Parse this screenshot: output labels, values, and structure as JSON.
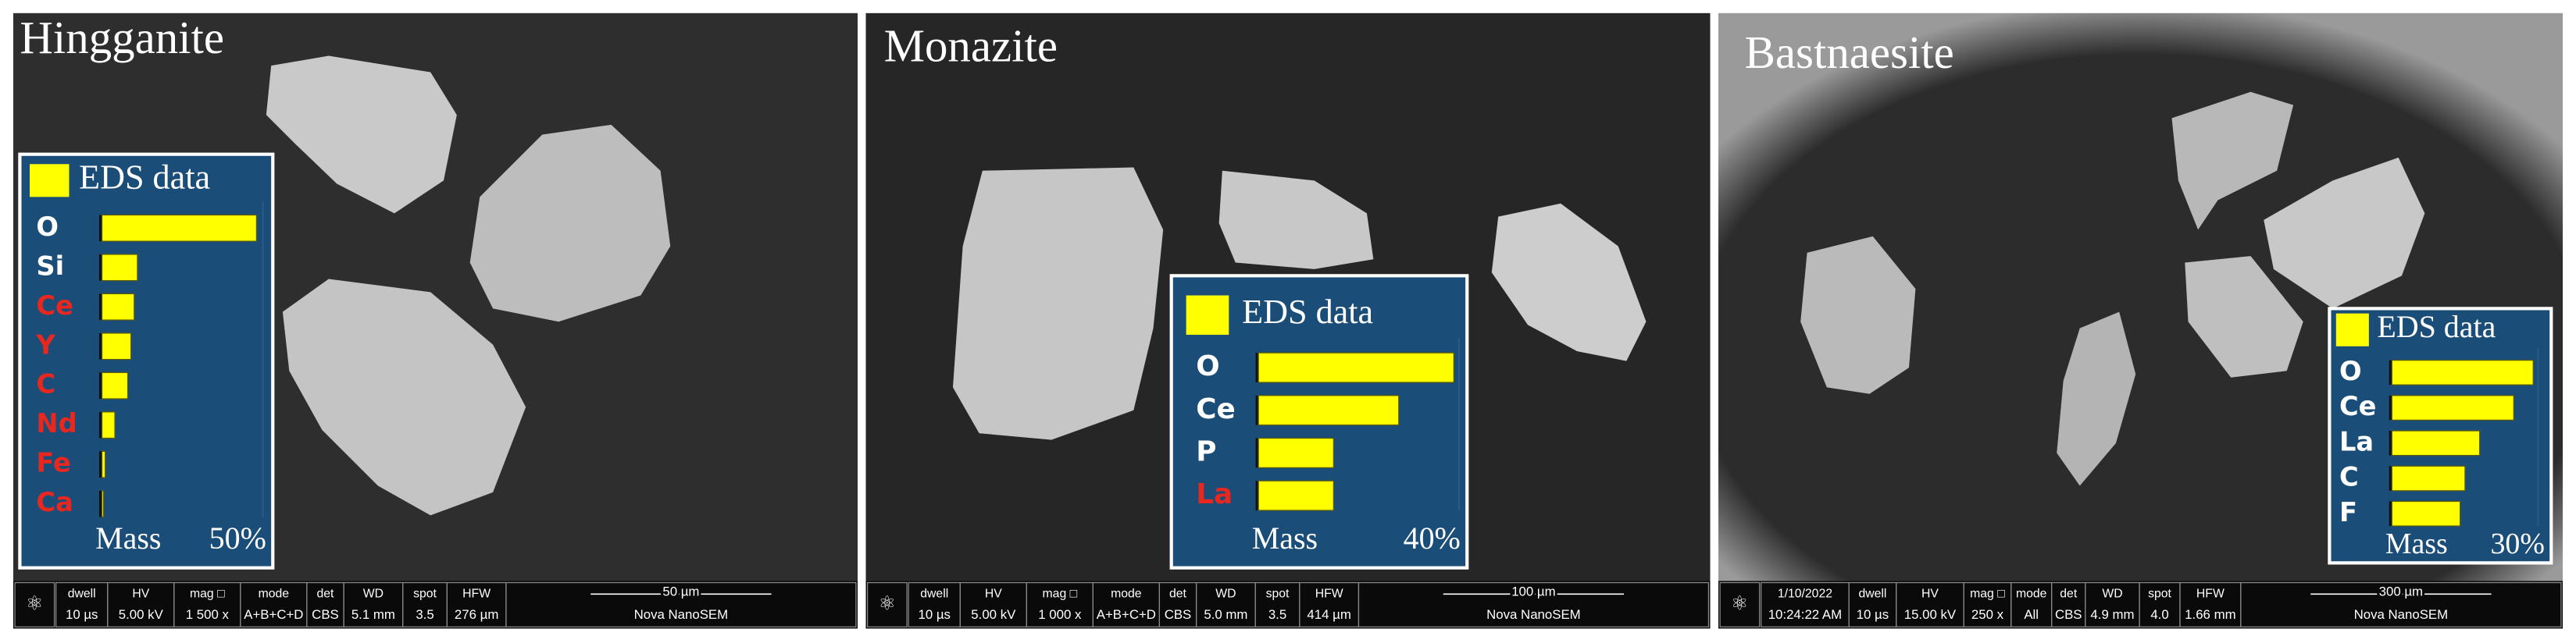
{
  "panels": [
    {
      "title": "Hingganite",
      "eds": {
        "title": "EDS data",
        "axis_label": "Mass",
        "max_tick": {
          "value": 50,
          "label": "50%"
        },
        "elements": [
          {
            "label": "O",
            "color": "#ffffff",
            "value": 48
          },
          {
            "label": "Si",
            "color": "#ffffff",
            "value": 11
          },
          {
            "label": "Ce",
            "color": "#e8281e",
            "value": 10
          },
          {
            "label": "Y",
            "color": "#e8281e",
            "value": 9
          },
          {
            "label": "C",
            "color": "#e8281e",
            "value": 8
          },
          {
            "label": "Nd",
            "color": "#e8281e",
            "value": 4
          },
          {
            "label": "Fe",
            "color": "#e8281e",
            "value": 1
          },
          {
            "label": "Ca",
            "color": "#e8281e",
            "value": 0.5
          }
        ]
      },
      "info_bar": {
        "fields": [
          {
            "name": "dwell",
            "value": "10 µs"
          },
          {
            "name": "HV",
            "value": "5.00 kV"
          },
          {
            "name": "mag □",
            "value": "1 500 x"
          },
          {
            "name": "mode",
            "value": "A+B+C+D"
          },
          {
            "name": "det",
            "value": "CBS"
          },
          {
            "name": "WD",
            "value": "5.1 mm"
          },
          {
            "name": "spot",
            "value": "3.5"
          },
          {
            "name": "HFW",
            "value": "276 µm"
          }
        ],
        "scale_bar": "50 µm",
        "instrument": "Nova NanoSEM"
      }
    },
    {
      "title": "Monazite",
      "eds": {
        "title": "EDS data",
        "axis_label": "Mass",
        "max_tick": {
          "value": 40,
          "label": "40%"
        },
        "elements": [
          {
            "label": "O",
            "color": "#ffffff",
            "value": 39
          },
          {
            "label": "Ce",
            "color": "#ffffff",
            "value": 28
          },
          {
            "label": "P",
            "color": "#ffffff",
            "value": 15
          },
          {
            "label": "La",
            "color": "#e8281e",
            "value": 15
          }
        ]
      },
      "info_bar": {
        "fields": [
          {
            "name": "dwell",
            "value": "10 µs"
          },
          {
            "name": "HV",
            "value": "5.00 kV"
          },
          {
            "name": "mag □",
            "value": "1 000 x"
          },
          {
            "name": "mode",
            "value": "A+B+C+D"
          },
          {
            "name": "det",
            "value": "CBS"
          },
          {
            "name": "WD",
            "value": "5.0 mm"
          },
          {
            "name": "spot",
            "value": "3.5"
          },
          {
            "name": "HFW",
            "value": "414 µm"
          }
        ],
        "scale_bar": "100 µm",
        "instrument": "Nova NanoSEM"
      }
    },
    {
      "title": "Bastnaesite",
      "eds": {
        "title": "EDS data",
        "axis_label": "Mass",
        "max_tick": {
          "value": 30,
          "label": "30%"
        },
        "elements": [
          {
            "label": "O",
            "color": "#ffffff",
            "value": 29
          },
          {
            "label": "Ce",
            "color": "#ffffff",
            "value": 25
          },
          {
            "label": "La",
            "color": "#ffffff",
            "value": 18
          },
          {
            "label": "C",
            "color": "#ffffff",
            "value": 15
          },
          {
            "label": "F",
            "color": "#ffffff",
            "value": 14
          }
        ]
      },
      "info_bar": {
        "fields": [
          {
            "name": "1/10/2022",
            "value": "10:24:22 AM"
          },
          {
            "name": "dwell",
            "value": "10 µs"
          },
          {
            "name": "HV",
            "value": "15.00 kV"
          },
          {
            "name": "mag □",
            "value": "250 x"
          },
          {
            "name": "mode",
            "value": "All"
          },
          {
            "name": "det",
            "value": "CBS"
          },
          {
            "name": "WD",
            "value": "4.9 mm"
          },
          {
            "name": "spot",
            "value": "4.0"
          },
          {
            "name": "HFW",
            "value": "1.66 mm"
          }
        ],
        "scale_bar": "300 µm",
        "instrument": "Nova NanoSEM"
      }
    }
  ]
}
